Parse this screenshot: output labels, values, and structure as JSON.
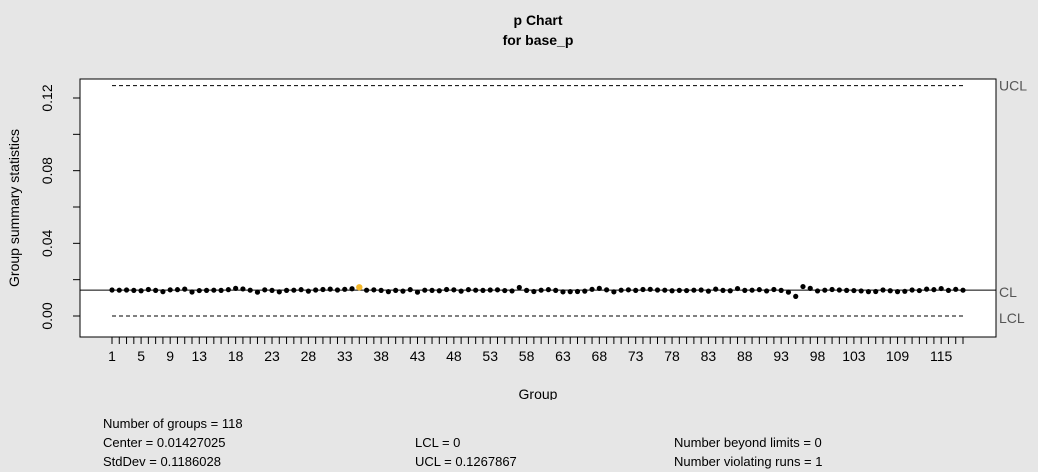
{
  "chart_data": {
    "type": "scatter",
    "title": "p Chart",
    "subtitle": "for base_p",
    "xlabel": "Group",
    "ylabel": "Group summary statistics",
    "xlim": [
      1,
      118
    ],
    "ylim": [
      0,
      0.13
    ],
    "yticks": [
      0.0,
      0.04,
      0.08,
      0.12
    ],
    "ytick_labels": [
      "0.00",
      "0.04",
      "0.08",
      "0.12"
    ],
    "xticks": [
      1,
      5,
      9,
      13,
      18,
      23,
      28,
      33,
      38,
      43,
      48,
      53,
      58,
      63,
      68,
      73,
      78,
      83,
      88,
      93,
      98,
      103,
      109,
      115
    ],
    "limits": {
      "UCL": 0.1267867,
      "CL": 0.01427025,
      "LCL": 0
    },
    "limit_labels": {
      "UCL": "UCL",
      "CL": "CL",
      "LCL": "LCL"
    },
    "point_color": "#000000",
    "highlight_color": "#f5b82a",
    "highlight_points": [
      35
    ],
    "x": [
      1,
      2,
      3,
      4,
      5,
      6,
      7,
      8,
      9,
      10,
      11,
      12,
      13,
      14,
      15,
      16,
      17,
      18,
      19,
      20,
      21,
      22,
      23,
      24,
      25,
      26,
      27,
      28,
      29,
      30,
      31,
      32,
      33,
      34,
      35,
      36,
      37,
      38,
      39,
      40,
      41,
      42,
      43,
      44,
      45,
      46,
      47,
      48,
      49,
      50,
      51,
      52,
      53,
      54,
      55,
      56,
      57,
      58,
      59,
      60,
      61,
      62,
      63,
      64,
      65,
      66,
      67,
      68,
      69,
      70,
      71,
      72,
      73,
      74,
      75,
      76,
      77,
      78,
      79,
      80,
      81,
      82,
      83,
      84,
      85,
      86,
      87,
      88,
      89,
      90,
      91,
      92,
      93,
      94,
      95,
      96,
      97,
      98,
      99,
      100,
      101,
      102,
      103,
      104,
      105,
      106,
      107,
      108,
      109,
      110,
      111,
      112,
      113,
      114,
      115,
      116,
      117,
      118
    ],
    "values": [
      0.0143,
      0.0142,
      0.0143,
      0.0141,
      0.0139,
      0.0146,
      0.0141,
      0.0134,
      0.0144,
      0.0145,
      0.0148,
      0.0132,
      0.014,
      0.0141,
      0.0142,
      0.0141,
      0.0145,
      0.0152,
      0.0149,
      0.0142,
      0.0131,
      0.0144,
      0.0141,
      0.0133,
      0.0141,
      0.0142,
      0.0145,
      0.0137,
      0.0143,
      0.0146,
      0.0148,
      0.0143,
      0.0147,
      0.015,
      0.0158,
      0.0142,
      0.0144,
      0.0141,
      0.0134,
      0.0141,
      0.0137,
      0.0145,
      0.0131,
      0.0142,
      0.0141,
      0.0139,
      0.0146,
      0.0144,
      0.0137,
      0.0145,
      0.0142,
      0.0141,
      0.0143,
      0.0144,
      0.014,
      0.0138,
      0.0157,
      0.0141,
      0.0135,
      0.0142,
      0.0145,
      0.0141,
      0.0133,
      0.0134,
      0.0135,
      0.0137,
      0.0147,
      0.0152,
      0.0144,
      0.0133,
      0.0142,
      0.0144,
      0.0141,
      0.0146,
      0.0147,
      0.0143,
      0.0142,
      0.0139,
      0.0141,
      0.014,
      0.0142,
      0.0143,
      0.0137,
      0.0148,
      0.0141,
      0.0139,
      0.0151,
      0.0141,
      0.0142,
      0.0145,
      0.0138,
      0.0146,
      0.0141,
      0.0131,
      0.0108,
      0.0162,
      0.0152,
      0.0138,
      0.0142,
      0.0146,
      0.0143,
      0.0141,
      0.014,
      0.0138,
      0.0134,
      0.0135,
      0.0143,
      0.0139,
      0.0134,
      0.0136,
      0.0143,
      0.014,
      0.0148,
      0.0145,
      0.0151,
      0.0141,
      0.0147,
      0.0142
    ]
  },
  "stats": {
    "num_groups": "Number of groups = 118",
    "center": "Center = 0.01427025",
    "stddev": "StdDev = 0.1186028",
    "lcl": "LCL = 0",
    "ucl": "UCL = 0.1267867",
    "beyond": "Number beyond limits = 0",
    "violating": "Number violating runs = 1"
  }
}
